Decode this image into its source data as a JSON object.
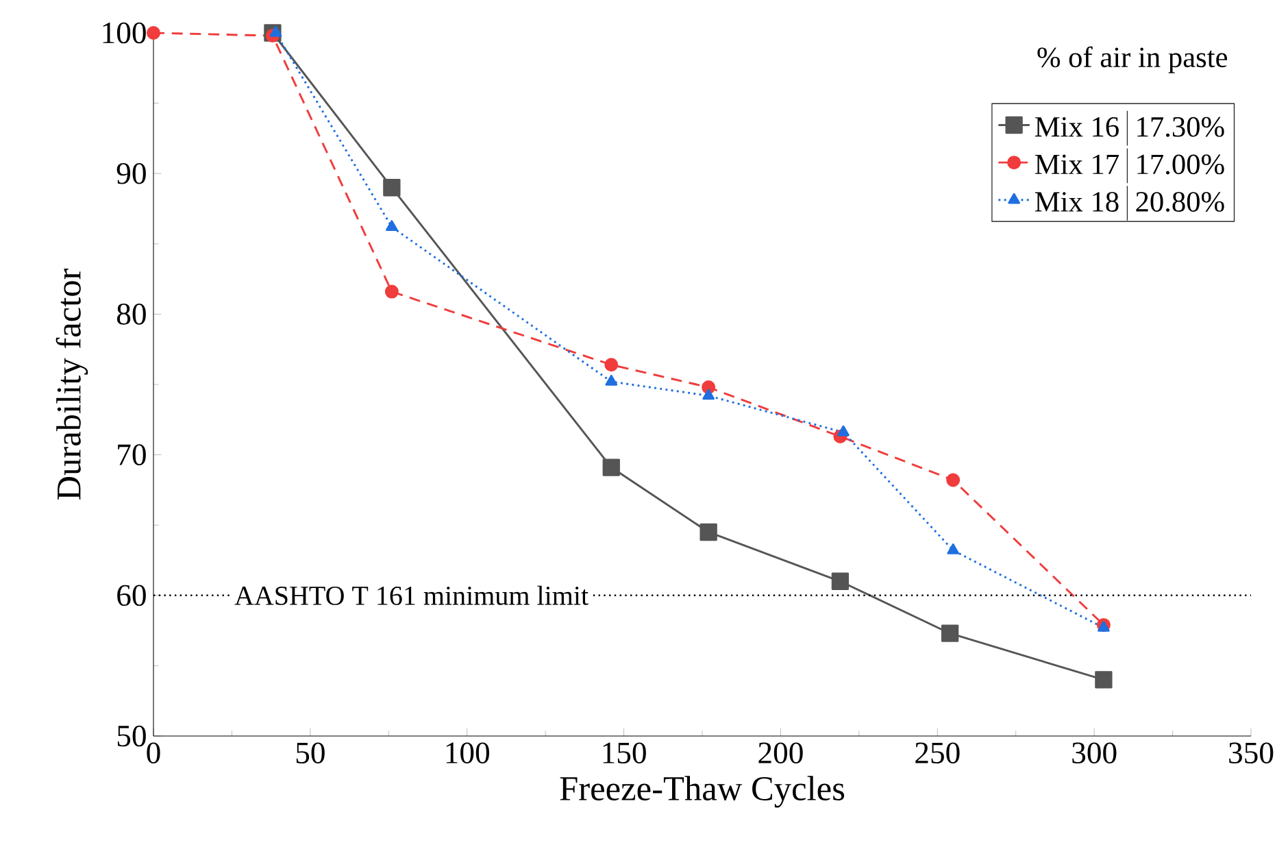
{
  "chart_data": {
    "type": "line",
    "xlabel": "Freeze-Thaw Cycles",
    "ylabel": "Durability factor",
    "legend_title": "% of air in paste",
    "series": [
      {
        "name": "Mix 16",
        "color": "#555555",
        "marker": "square",
        "line_style": "solid",
        "x": [
          38,
          76,
          146,
          177,
          219,
          254,
          303
        ],
        "values": [
          100,
          89.0,
          69.1,
          64.5,
          61.0,
          57.3,
          54.0
        ]
      },
      {
        "name": "Mix 17",
        "color": "#f03c3c",
        "marker": "circle",
        "line_style": "dashed",
        "x": [
          0,
          38,
          76,
          146,
          177,
          219,
          255,
          303
        ],
        "values": [
          100,
          99.8,
          81.6,
          76.4,
          74.8,
          71.3,
          68.2,
          57.9
        ]
      },
      {
        "name": "Mix 18",
        "color": "#1f6fe0",
        "marker": "triangle",
        "line_style": "dotted",
        "x": [
          39,
          76,
          146,
          177,
          220,
          255,
          303
        ],
        "values": [
          100,
          86.2,
          75.2,
          74.2,
          71.6,
          63.2,
          57.7
        ]
      }
    ],
    "annotations": [
      "17.30%",
      "17.00%",
      "20.80%"
    ],
    "ref_lines": [
      {
        "axis": "y",
        "value": 60,
        "label": "AASHTO T 161 minimum limit",
        "color": "#000000",
        "line_style": "dotted"
      }
    ],
    "xlim": [
      0,
      350
    ],
    "ylim": [
      50,
      100
    ],
    "xticks": [
      0,
      50,
      100,
      150,
      200,
      250,
      300,
      350
    ],
    "yticks": [
      50,
      60,
      70,
      80,
      90,
      100
    ],
    "grid": false,
    "legend": "top right"
  }
}
